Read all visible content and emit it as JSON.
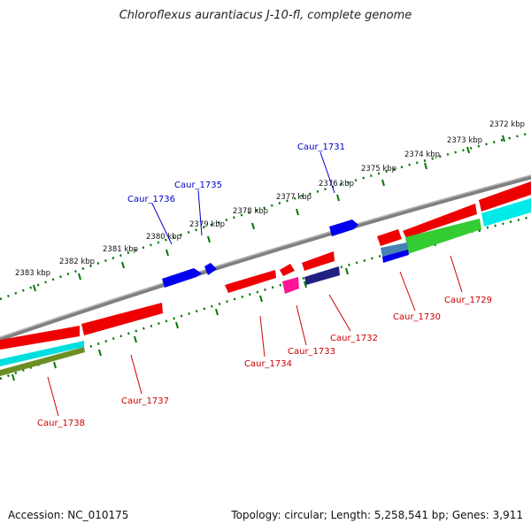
{
  "title": "Chloroflexus aurantiacus J-10-fl, complete genome",
  "footer": {
    "accession": "Accession: NC_010175",
    "summary": "Topology: circular; Length: 5,258,541 bp; Genes: 3,911"
  },
  "ticks": [
    "2372 kbp",
    "2373 kbp",
    "2374 kbp",
    "2375 kbp",
    "2376 kbp",
    "2377 kbp",
    "2378 kbp",
    "2379 kbp",
    "2380 kbp",
    "2381 kbp",
    "2382 kbp",
    "2383 kbp"
  ],
  "genes": [
    {
      "label": "Caur_1731",
      "strand": "forward",
      "color": "#0000cc"
    },
    {
      "label": "Caur_1735",
      "strand": "forward",
      "color": "#0000cc"
    },
    {
      "label": "Caur_1736",
      "strand": "forward",
      "color": "#0000cc"
    },
    {
      "label": "Caur_1729",
      "strand": "reverse",
      "color": "#cc0000"
    },
    {
      "label": "Caur_1730",
      "strand": "reverse",
      "color": "#cc0000"
    },
    {
      "label": "Caur_1732",
      "strand": "reverse",
      "color": "#cc0000"
    },
    {
      "label": "Caur_1733",
      "strand": "reverse",
      "color": "#cc0000"
    },
    {
      "label": "Caur_1734",
      "strand": "reverse",
      "color": "#cc0000"
    },
    {
      "label": "Caur_1737",
      "strand": "reverse",
      "color": "#cc0000"
    },
    {
      "label": "Caur_1738",
      "strand": "reverse",
      "color": "#cc0000"
    }
  ],
  "colors": {
    "backbone": "#808080",
    "ruler": "#007700",
    "cds": "#ff0000",
    "forward_gene": "#0000ff",
    "rna": "#ff1493",
    "track_cyan": "#00e5e5",
    "track_green": "#33cc33",
    "track_olive": "#6b8e23",
    "track_navy": "#000080"
  }
}
